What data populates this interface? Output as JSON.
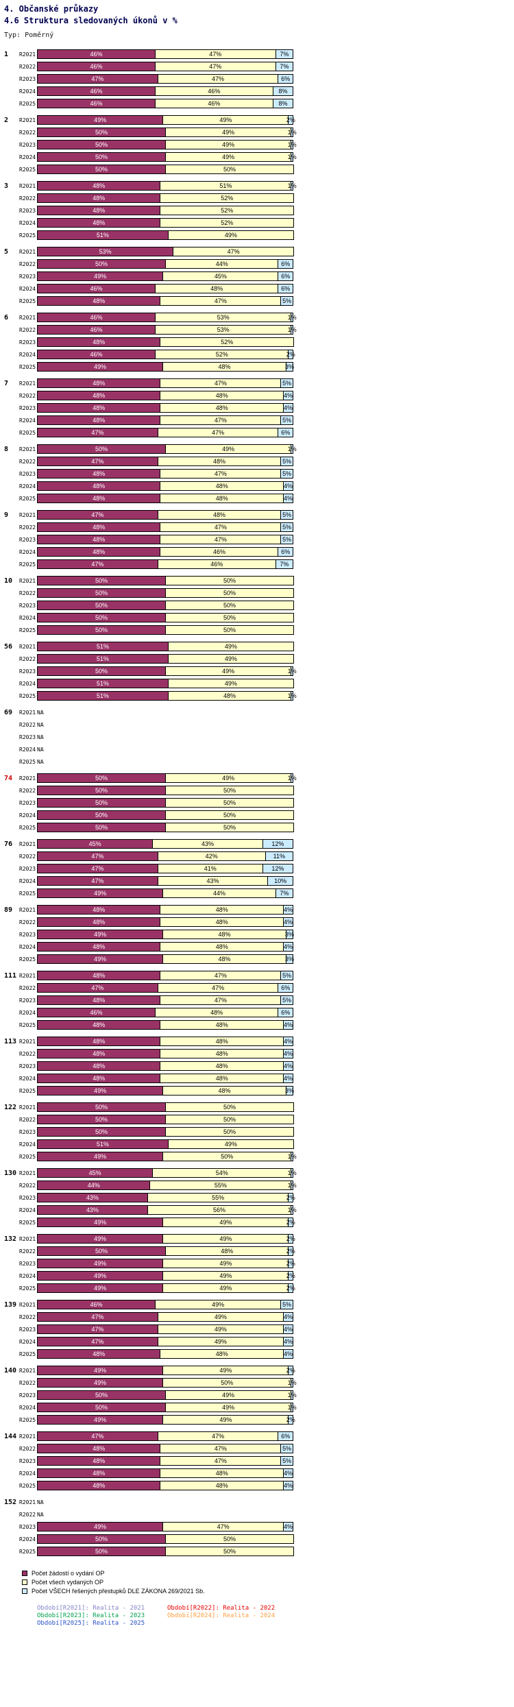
{
  "header": {
    "title": "4. Občanské průkazy",
    "subtitle": "4.6 Struktura sledovaných úkonů v %",
    "type_label": "Typ: Poměrný"
  },
  "chart_data": {
    "type": "bar",
    "variant": "horizontal-stacked-100-percent",
    "unit": "%",
    "na_label": "NA",
    "xlim": [
      0,
      100
    ],
    "grid": false,
    "legend_position": "bottom",
    "row_labels": [
      "R2021",
      "R2022",
      "R2023",
      "R2024",
      "R2025"
    ],
    "series": [
      {
        "name": "Počet žádostí o vydání OP",
        "color": "#993366",
        "text_color": "#FFFFFF"
      },
      {
        "name": "Počet všech vydaných OP",
        "color": "#FFFFCC",
        "text_color": "#000000"
      },
      {
        "name": "Počet VŠECH řešených přestupků DLE ZÁKONA 269/2021 Sb.",
        "color": "#CCECFF",
        "text_color": "#000000"
      }
    ],
    "groups": [
      {
        "id": "1",
        "id_color": "#000000",
        "rows": [
          [
            46,
            47,
            7
          ],
          [
            46,
            47,
            7
          ],
          [
            47,
            47,
            6
          ],
          [
            46,
            46,
            8
          ],
          [
            46,
            46,
            8
          ]
        ]
      },
      {
        "id": "2",
        "id_color": "#000000",
        "rows": [
          [
            49,
            49,
            2
          ],
          [
            50,
            49,
            1
          ],
          [
            50,
            49,
            1
          ],
          [
            50,
            49,
            1
          ],
          [
            50,
            50,
            0
          ]
        ]
      },
      {
        "id": "3",
        "id_color": "#000000",
        "rows": [
          [
            48,
            51,
            1
          ],
          [
            48,
            52,
            0
          ],
          [
            48,
            52,
            0
          ],
          [
            48,
            52,
            0
          ],
          [
            51,
            49,
            0
          ]
        ]
      },
      {
        "id": "5",
        "id_color": "#000000",
        "rows": [
          [
            53,
            47,
            0
          ],
          [
            50,
            44,
            6
          ],
          [
            49,
            45,
            6
          ],
          [
            46,
            48,
            6
          ],
          [
            48,
            47,
            5
          ]
        ]
      },
      {
        "id": "6",
        "id_color": "#000000",
        "rows": [
          [
            46,
            53,
            1
          ],
          [
            46,
            53,
            1
          ],
          [
            48,
            52,
            0
          ],
          [
            46,
            52,
            2
          ],
          [
            49,
            48,
            3
          ]
        ]
      },
      {
        "id": "7",
        "id_color": "#000000",
        "rows": [
          [
            48,
            47,
            5
          ],
          [
            48,
            48,
            4
          ],
          [
            48,
            48,
            4
          ],
          [
            48,
            47,
            5
          ],
          [
            47,
            47,
            6
          ]
        ]
      },
      {
        "id": "8",
        "id_color": "#000000",
        "rows": [
          [
            50,
            49,
            1
          ],
          [
            47,
            48,
            5
          ],
          [
            48,
            47,
            5
          ],
          [
            48,
            48,
            4
          ],
          [
            48,
            48,
            4
          ]
        ]
      },
      {
        "id": "9",
        "id_color": "#000000",
        "rows": [
          [
            47,
            48,
            5
          ],
          [
            48,
            47,
            5
          ],
          [
            48,
            47,
            5
          ],
          [
            48,
            46,
            6
          ],
          [
            47,
            46,
            7
          ]
        ]
      },
      {
        "id": "10",
        "id_color": "#000000",
        "rows": [
          [
            50,
            50,
            0
          ],
          [
            50,
            50,
            0
          ],
          [
            50,
            50,
            0
          ],
          [
            50,
            50,
            0
          ],
          [
            50,
            50,
            0
          ]
        ]
      },
      {
        "id": "56",
        "id_color": "#000000",
        "rows": [
          [
            51,
            49,
            0
          ],
          [
            51,
            49,
            0
          ],
          [
            50,
            49,
            1
          ],
          [
            51,
            49,
            0
          ],
          [
            51,
            48,
            1
          ]
        ]
      },
      {
        "id": "69",
        "id_color": "#000000",
        "rows": [
          null,
          null,
          null,
          null,
          null
        ]
      },
      {
        "id": "74",
        "id_color": "#D00000",
        "rows": [
          [
            50,
            49,
            1
          ],
          [
            50,
            50,
            0
          ],
          [
            50,
            50,
            0
          ],
          [
            50,
            50,
            0
          ],
          [
            50,
            50,
            0
          ]
        ]
      },
      {
        "id": "76",
        "id_color": "#000000",
        "rows": [
          [
            45,
            43,
            12
          ],
          [
            47,
            42,
            11
          ],
          [
            47,
            41,
            12
          ],
          [
            47,
            43,
            10
          ],
          [
            49,
            44,
            7
          ]
        ]
      },
      {
        "id": "89",
        "id_color": "#000000",
        "rows": [
          [
            48,
            48,
            4
          ],
          [
            48,
            48,
            4
          ],
          [
            49,
            48,
            3
          ],
          [
            48,
            48,
            4
          ],
          [
            49,
            48,
            3
          ]
        ]
      },
      {
        "id": "111",
        "id_color": "#000000",
        "rows": [
          [
            48,
            47,
            5
          ],
          [
            47,
            47,
            6
          ],
          [
            48,
            47,
            5
          ],
          [
            46,
            48,
            6
          ],
          [
            48,
            48,
            4
          ]
        ]
      },
      {
        "id": "113",
        "id_color": "#000000",
        "rows": [
          [
            48,
            48,
            4
          ],
          [
            48,
            48,
            4
          ],
          [
            48,
            48,
            4
          ],
          [
            48,
            48,
            4
          ],
          [
            49,
            48,
            3
          ]
        ]
      },
      {
        "id": "122",
        "id_color": "#000000",
        "rows": [
          [
            50,
            50,
            0
          ],
          [
            50,
            50,
            0
          ],
          [
            50,
            50,
            0
          ],
          [
            51,
            49,
            0
          ],
          [
            49,
            50,
            1
          ]
        ]
      },
      {
        "id": "130",
        "id_color": "#000000",
        "rows": [
          [
            45,
            54,
            1
          ],
          [
            44,
            55,
            1
          ],
          [
            43,
            55,
            2
          ],
          [
            43,
            56,
            1
          ],
          [
            49,
            49,
            2
          ]
        ]
      },
      {
        "id": "132",
        "id_color": "#000000",
        "rows": [
          [
            49,
            49,
            2
          ],
          [
            50,
            48,
            2
          ],
          [
            49,
            49,
            2
          ],
          [
            49,
            49,
            2
          ],
          [
            49,
            49,
            2
          ]
        ]
      },
      {
        "id": "139",
        "id_color": "#000000",
        "rows": [
          [
            46,
            49,
            5
          ],
          [
            47,
            49,
            4
          ],
          [
            47,
            49,
            4
          ],
          [
            47,
            49,
            4
          ],
          [
            48,
            48,
            4
          ]
        ]
      },
      {
        "id": "140",
        "id_color": "#000000",
        "rows": [
          [
            49,
            49,
            2
          ],
          [
            49,
            50,
            1
          ],
          [
            50,
            49,
            1
          ],
          [
            50,
            49,
            1
          ],
          [
            49,
            49,
            2
          ]
        ]
      },
      {
        "id": "144",
        "id_color": "#000000",
        "rows": [
          [
            47,
            47,
            6
          ],
          [
            48,
            47,
            5
          ],
          [
            48,
            47,
            5
          ],
          [
            48,
            48,
            4
          ],
          [
            48,
            48,
            4
          ]
        ]
      },
      {
        "id": "152",
        "id_color": "#000000",
        "rows": [
          null,
          null,
          [
            49,
            47,
            4
          ],
          [
            50,
            50,
            0
          ],
          [
            50,
            50,
            0
          ]
        ]
      }
    ]
  },
  "legend": {
    "periods": [
      {
        "label": "Období[R2021]: Realita - 2021",
        "color": "#8484C8"
      },
      {
        "label": "Období[R2022]: Realita - 2022",
        "color": "#E80000"
      },
      {
        "label": "Období[R2023]: Realita - 2023",
        "color": "#00A050"
      },
      {
        "label": "Období[R2024]: Realita - 2024",
        "color": "#FFA040"
      },
      {
        "label": "Období[R2025]: Realita - 2025",
        "color": "#2850C8"
      }
    ]
  }
}
